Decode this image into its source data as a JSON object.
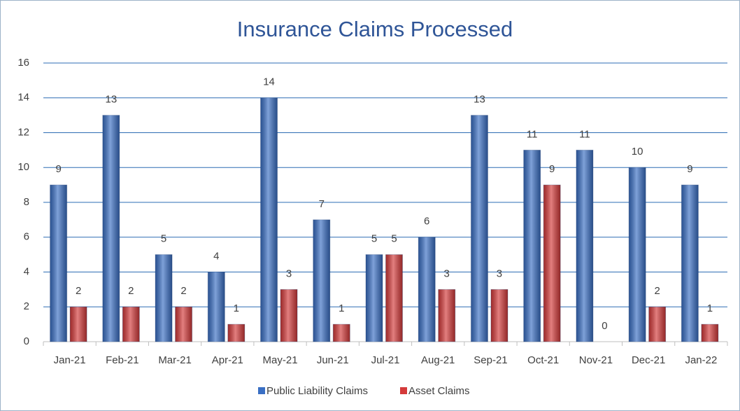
{
  "chart_data": {
    "type": "bar",
    "title": "Insurance Claims Processed",
    "categories": [
      "Jan-21",
      "Feb-21",
      "Mar-21",
      "Apr-21",
      "May-21",
      "Jun-21",
      "Jul-21",
      "Aug-21",
      "Sep-21",
      "Oct-21",
      "Nov-21",
      "Dec-21",
      "Jan-22"
    ],
    "series": [
      {
        "name": "Public Liability Claims",
        "color": "#3a6fc4",
        "values": [
          9,
          13,
          5,
          4,
          14,
          7,
          5,
          6,
          13,
          11,
          11,
          10,
          9
        ]
      },
      {
        "name": "Asset Claims",
        "color": "#d43a3a",
        "values": [
          2,
          2,
          2,
          1,
          3,
          1,
          5,
          3,
          3,
          9,
          0,
          2,
          1
        ]
      }
    ],
    "ylim": [
      0,
      16
    ],
    "yticks": [
      0,
      2,
      4,
      6,
      8,
      10,
      12,
      14,
      16
    ],
    "grid": true,
    "legend": "bottom"
  }
}
